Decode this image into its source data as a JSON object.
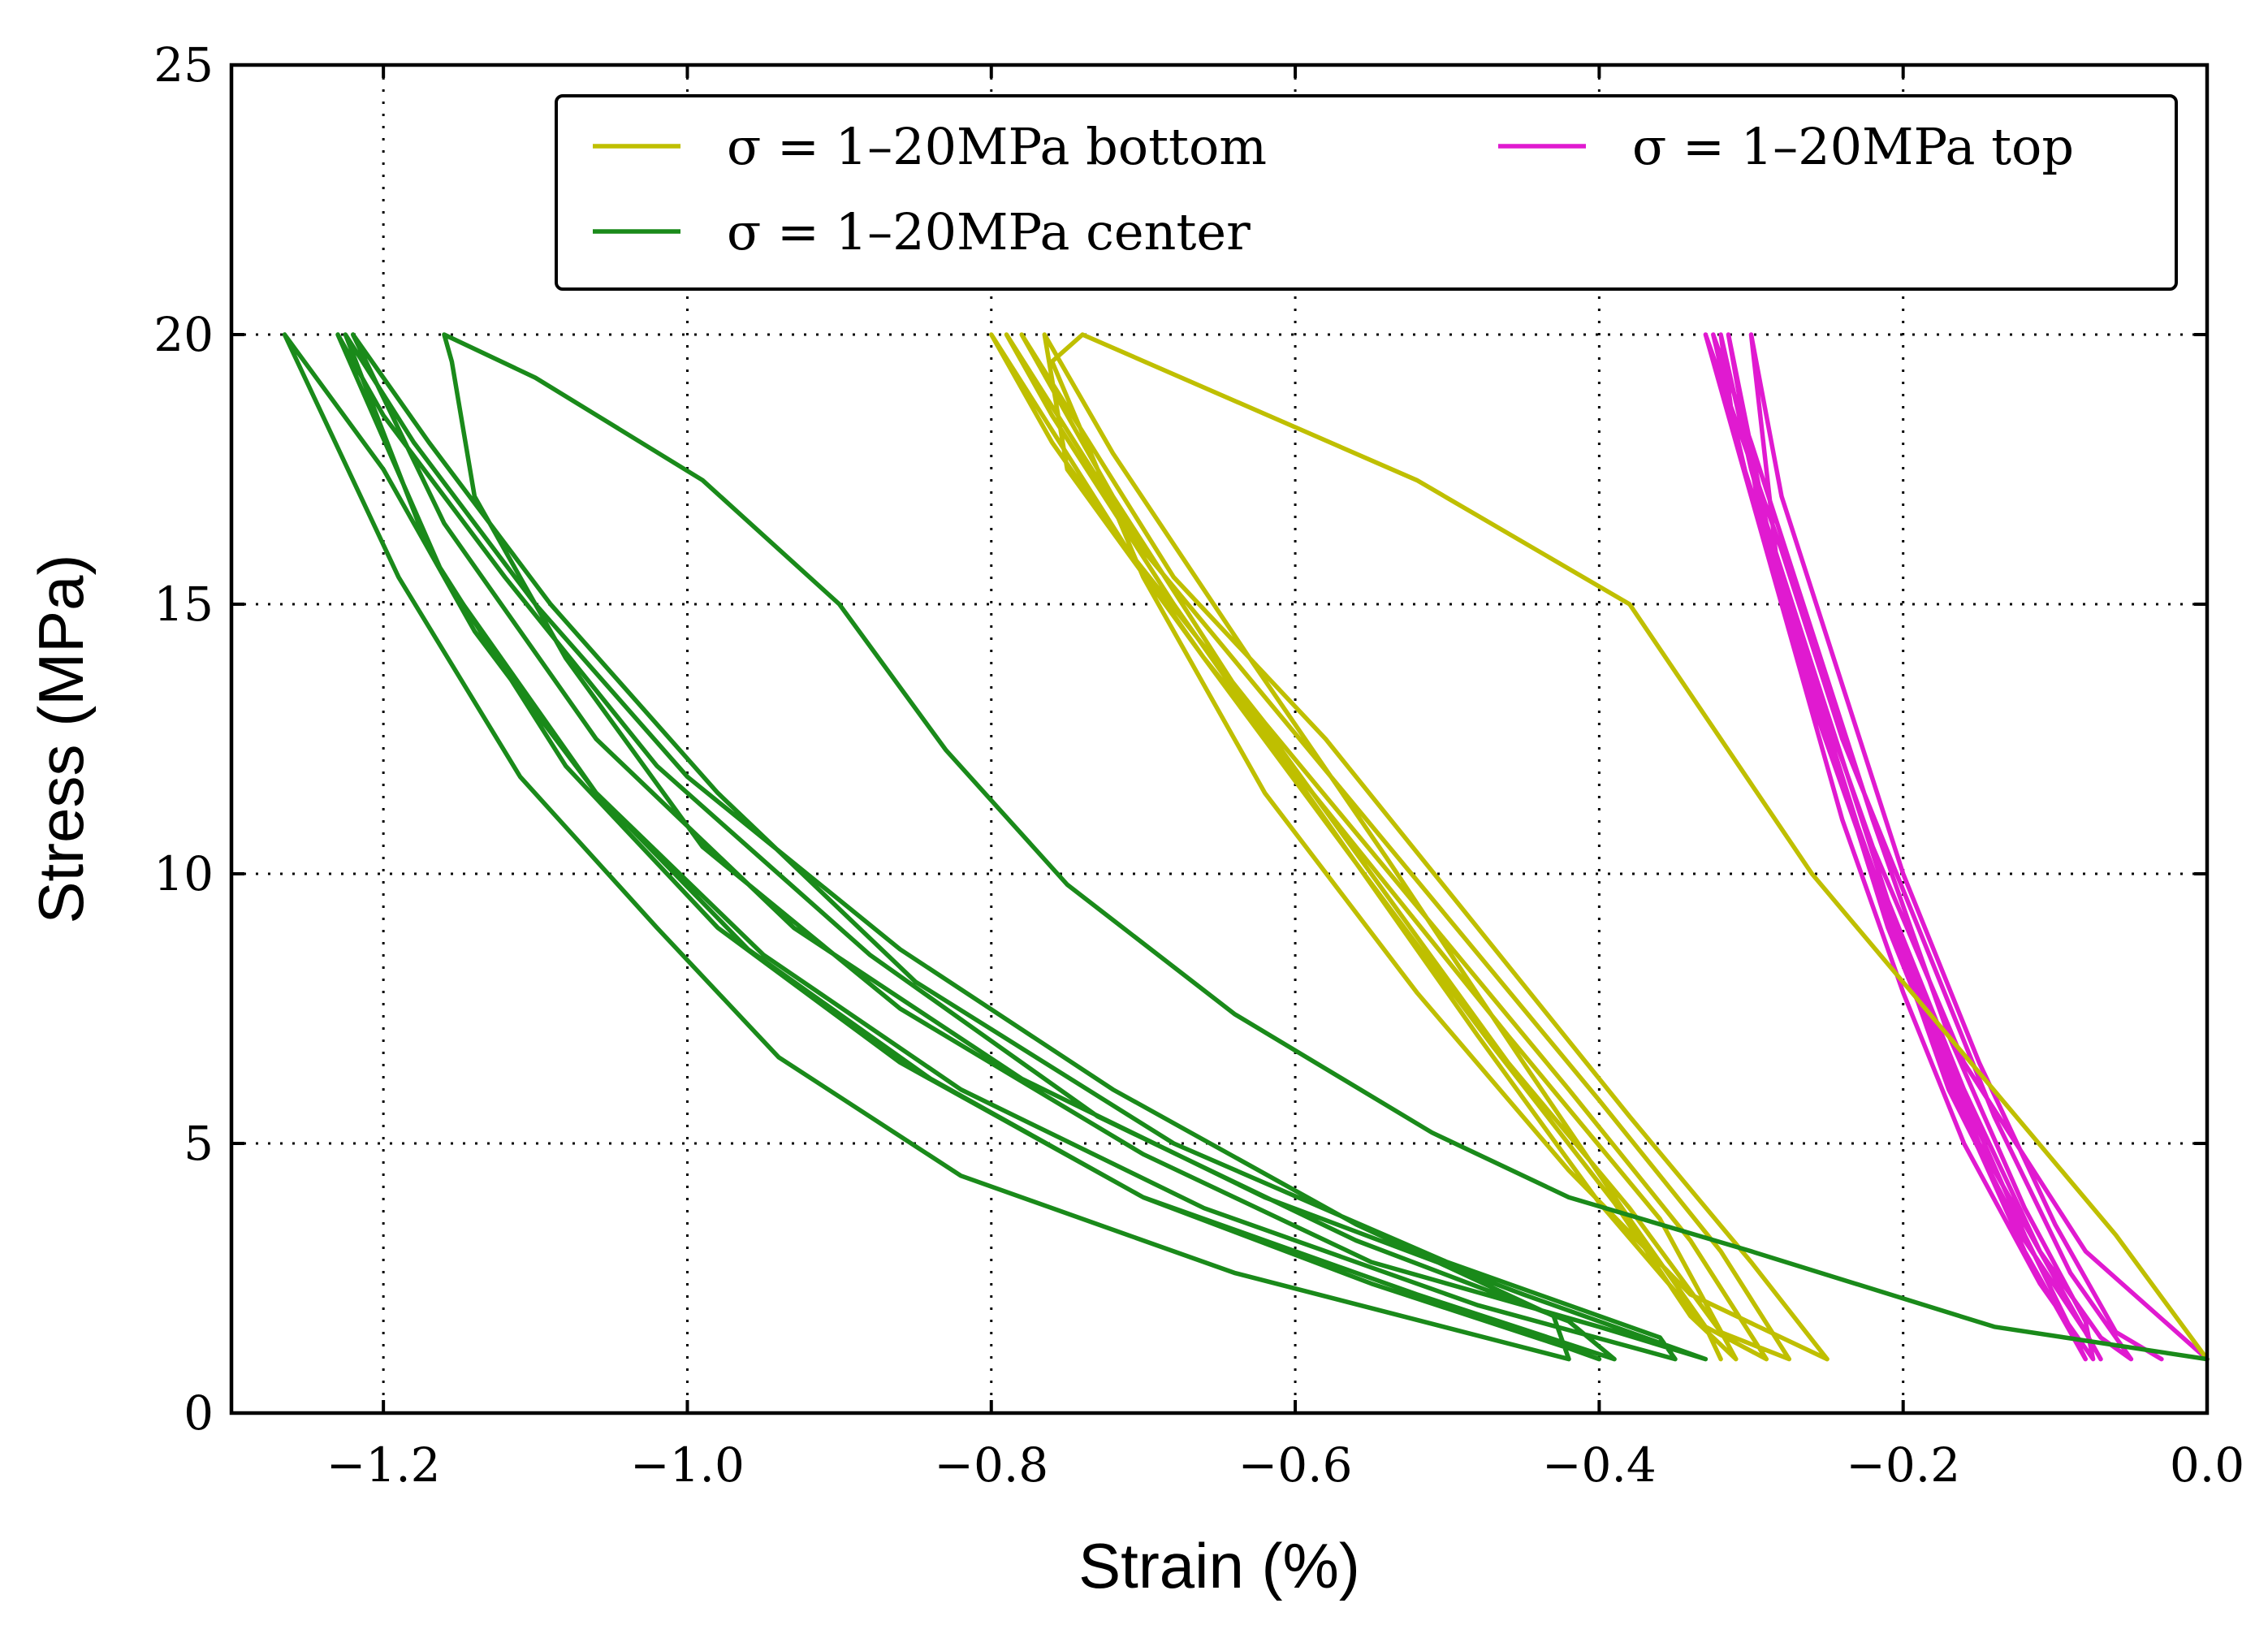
{
  "chart_data": {
    "type": "line",
    "title": "",
    "xlabel": "Strain (%)",
    "ylabel": "Stress (MPa)",
    "xlim": [
      -1.3,
      0.0
    ],
    "ylim": [
      0,
      25
    ],
    "grid": true,
    "legend_position": "top-right",
    "x_ticks": [
      -1.2,
      -1.0,
      -0.8,
      -0.6,
      -0.4,
      -0.2,
      0.0
    ],
    "x_tick_labels": [
      "−1.2",
      "−1.0",
      "−0.8",
      "−0.6",
      "−0.4",
      "−0.2",
      "0.0"
    ],
    "y_ticks": [
      0,
      5,
      10,
      15,
      20,
      25
    ],
    "y_tick_labels": [
      "0",
      "5",
      "10",
      "15",
      "20",
      "25"
    ],
    "series": [
      {
        "name": "σ = 1–20MPa bottom",
        "color": "#bfbf00",
        "points": [
          [
            0.0,
            1.0
          ],
          [
            -0.06,
            3.3
          ],
          [
            -0.26,
            10.0
          ],
          [
            -0.38,
            15.0
          ],
          [
            -0.52,
            17.3
          ],
          [
            -0.74,
            20.0
          ],
          [
            -0.76,
            19.5
          ],
          [
            -0.7,
            15.5
          ],
          [
            -0.62,
            11.5
          ],
          [
            -0.52,
            7.8
          ],
          [
            -0.42,
            4.5
          ],
          [
            -0.34,
            2.2
          ],
          [
            -0.25,
            1.0
          ],
          [
            -0.3,
            2.8
          ],
          [
            -0.38,
            5.5
          ],
          [
            -0.48,
            9.0
          ],
          [
            -0.58,
            12.5
          ],
          [
            -0.68,
            15.5
          ],
          [
            -0.78,
            20.0
          ],
          [
            -0.72,
            17.0
          ],
          [
            -0.64,
            13.5
          ],
          [
            -0.55,
            10.0
          ],
          [
            -0.46,
            6.5
          ],
          [
            -0.38,
            3.8
          ],
          [
            -0.32,
            1.5
          ],
          [
            -0.275,
            1.0
          ],
          [
            -0.32,
            3.0
          ],
          [
            -0.4,
            5.8
          ],
          [
            -0.5,
            9.2
          ],
          [
            -0.6,
            12.6
          ],
          [
            -0.7,
            16.0
          ],
          [
            -0.79,
            20.0
          ],
          [
            -0.76,
            18.5
          ],
          [
            -0.68,
            15.0
          ],
          [
            -0.58,
            11.0
          ],
          [
            -0.48,
            7.0
          ],
          [
            -0.4,
            3.9
          ],
          [
            -0.33,
            1.6
          ],
          [
            -0.29,
            1.0
          ],
          [
            -0.34,
            3.2
          ],
          [
            -0.42,
            6.0
          ],
          [
            -0.52,
            9.4
          ],
          [
            -0.62,
            12.8
          ],
          [
            -0.71,
            16.0
          ],
          [
            -0.8,
            20.0
          ],
          [
            -0.76,
            18.0
          ],
          [
            -0.66,
            14.0
          ],
          [
            -0.56,
            10.2
          ],
          [
            -0.47,
            6.8
          ],
          [
            -0.39,
            3.9
          ],
          [
            -0.34,
            1.8
          ],
          [
            -0.31,
            1.0
          ],
          [
            -0.36,
            3.6
          ],
          [
            -0.46,
            7.0
          ],
          [
            -0.56,
            10.5
          ],
          [
            -0.66,
            14.0
          ],
          [
            -0.75,
            17.5
          ],
          [
            -0.765,
            20.0
          ],
          [
            -0.72,
            17.8
          ],
          [
            -0.63,
            14.0
          ],
          [
            -0.54,
            10.3
          ],
          [
            -0.45,
            6.5
          ],
          [
            -0.38,
            3.6
          ],
          [
            -0.33,
            1.6
          ],
          [
            -0.32,
            1.0
          ]
        ]
      },
      {
        "name": "σ = 1–20MPa center",
        "color": "#1a8a1a",
        "points": [
          [
            0.0,
            1.0
          ],
          [
            -0.14,
            1.6
          ],
          [
            -0.3,
            3.0
          ],
          [
            -0.42,
            4.0
          ],
          [
            -0.51,
            5.2
          ],
          [
            -0.64,
            7.4
          ],
          [
            -0.75,
            9.8
          ],
          [
            -0.83,
            12.3
          ],
          [
            -0.9,
            15.0
          ],
          [
            -0.99,
            17.3
          ],
          [
            -1.1,
            19.2
          ],
          [
            -1.16,
            20.0
          ],
          [
            -1.155,
            19.5
          ],
          [
            -1.14,
            17.0
          ],
          [
            -1.08,
            14.0
          ],
          [
            -0.99,
            10.5
          ],
          [
            -0.86,
            7.5
          ],
          [
            -0.7,
            4.8
          ],
          [
            -0.55,
            2.8
          ],
          [
            -0.4,
            1.6
          ],
          [
            -0.33,
            1.0
          ],
          [
            -0.45,
            2.2
          ],
          [
            -0.62,
            4.0
          ],
          [
            -0.78,
            6.2
          ],
          [
            -0.93,
            9.0
          ],
          [
            -1.06,
            12.5
          ],
          [
            -1.16,
            16.5
          ],
          [
            -1.22,
            20.0
          ],
          [
            -1.17,
            18.0
          ],
          [
            -1.09,
            15.0
          ],
          [
            -0.98,
            11.5
          ],
          [
            -0.85,
            8.0
          ],
          [
            -0.68,
            5.0
          ],
          [
            -0.5,
            2.8
          ],
          [
            -0.36,
            1.4
          ],
          [
            -0.35,
            1.0
          ],
          [
            -0.48,
            2.0
          ],
          [
            -0.66,
            3.8
          ],
          [
            -0.82,
            6.0
          ],
          [
            -0.95,
            8.5
          ],
          [
            -1.06,
            11.5
          ],
          [
            -1.16,
            15.5
          ],
          [
            -1.23,
            20.0
          ],
          [
            -1.2,
            18.5
          ],
          [
            -1.12,
            15.5
          ],
          [
            -1.02,
            12.0
          ],
          [
            -0.88,
            8.5
          ],
          [
            -0.73,
            5.5
          ],
          [
            -0.56,
            3.2
          ],
          [
            -0.42,
            1.7
          ],
          [
            -0.39,
            1.0
          ],
          [
            -0.52,
            2.2
          ],
          [
            -0.7,
            4.0
          ],
          [
            -0.86,
            6.5
          ],
          [
            -0.98,
            9.0
          ],
          [
            -1.08,
            12.0
          ],
          [
            -1.17,
            16.0
          ],
          [
            -1.225,
            20.0
          ],
          [
            -1.18,
            18.0
          ],
          [
            -1.1,
            15.0
          ],
          [
            -1.0,
            11.8
          ],
          [
            -0.86,
            8.6
          ],
          [
            -0.72,
            6.0
          ],
          [
            -0.56,
            3.5
          ],
          [
            -0.43,
            1.8
          ],
          [
            -0.42,
            1.0
          ],
          [
            -0.64,
            2.6
          ],
          [
            -0.82,
            4.4
          ],
          [
            -0.94,
            6.6
          ],
          [
            -1.02,
            9.0
          ],
          [
            -1.11,
            11.8
          ],
          [
            -1.19,
            15.5
          ],
          [
            -1.265,
            20.0
          ],
          [
            -1.2,
            17.5
          ],
          [
            -1.14,
            14.5
          ],
          [
            -1.06,
            11.5
          ],
          [
            -0.96,
            8.6
          ],
          [
            -0.84,
            6.2
          ],
          [
            -0.7,
            4.0
          ],
          [
            -0.55,
            2.4
          ],
          [
            -0.42,
            1.2
          ],
          [
            -0.4,
            1.0
          ]
        ]
      },
      {
        "name": "σ = 1–20MPa top",
        "color": "#e01ad0",
        "points": [
          [
            0.0,
            1.0
          ],
          [
            -0.08,
            3.0
          ],
          [
            -0.16,
            6.5
          ],
          [
            -0.22,
            10.5
          ],
          [
            -0.27,
            14.5
          ],
          [
            -0.3,
            17.5
          ],
          [
            -0.32,
            20.0
          ],
          [
            -0.31,
            18.0
          ],
          [
            -0.27,
            14.5
          ],
          [
            -0.22,
            10.0
          ],
          [
            -0.17,
            6.0
          ],
          [
            -0.12,
            3.2
          ],
          [
            -0.08,
            1.5
          ],
          [
            -0.07,
            1.0
          ],
          [
            -0.1,
            2.5
          ],
          [
            -0.15,
            5.0
          ],
          [
            -0.2,
            8.5
          ],
          [
            -0.25,
            12.5
          ],
          [
            -0.29,
            16.0
          ],
          [
            -0.315,
            20.0
          ],
          [
            -0.29,
            16.5
          ],
          [
            -0.25,
            13.0
          ],
          [
            -0.21,
            9.5
          ],
          [
            -0.16,
            6.0
          ],
          [
            -0.11,
            3.0
          ],
          [
            -0.07,
            1.4
          ],
          [
            -0.05,
            1.0
          ],
          [
            -0.09,
            2.6
          ],
          [
            -0.14,
            5.5
          ],
          [
            -0.19,
            9.0
          ],
          [
            -0.24,
            12.5
          ],
          [
            -0.28,
            16.0
          ],
          [
            -0.33,
            20.0
          ],
          [
            -0.3,
            17.0
          ],
          [
            -0.26,
            13.5
          ],
          [
            -0.21,
            9.0
          ],
          [
            -0.16,
            5.5
          ],
          [
            -0.12,
            3.0
          ],
          [
            -0.09,
            1.5
          ],
          [
            -0.08,
            1.0
          ],
          [
            -0.12,
            3.3
          ],
          [
            -0.17,
            6.5
          ],
          [
            -0.22,
            10.0
          ],
          [
            -0.27,
            14.0
          ],
          [
            -0.3,
            17.0
          ],
          [
            -0.325,
            20.0
          ],
          [
            -0.3,
            18.0
          ],
          [
            -0.26,
            14.5
          ],
          [
            -0.22,
            11.0
          ],
          [
            -0.17,
            7.0
          ],
          [
            -0.12,
            3.8
          ],
          [
            -0.08,
            1.7
          ],
          [
            -0.075,
            1.0
          ],
          [
            -0.11,
            2.4
          ],
          [
            -0.16,
            5.0
          ],
          [
            -0.2,
            7.8
          ],
          [
            -0.24,
            11.0
          ],
          [
            -0.28,
            15.0
          ],
          [
            -0.3,
            20.0
          ],
          [
            -0.28,
            17.0
          ],
          [
            -0.24,
            13.5
          ],
          [
            -0.2,
            10.0
          ],
          [
            -0.15,
            6.5
          ],
          [
            -0.1,
            3.5
          ],
          [
            -0.06,
            1.5
          ],
          [
            -0.03,
            1.0
          ]
        ]
      }
    ]
  }
}
